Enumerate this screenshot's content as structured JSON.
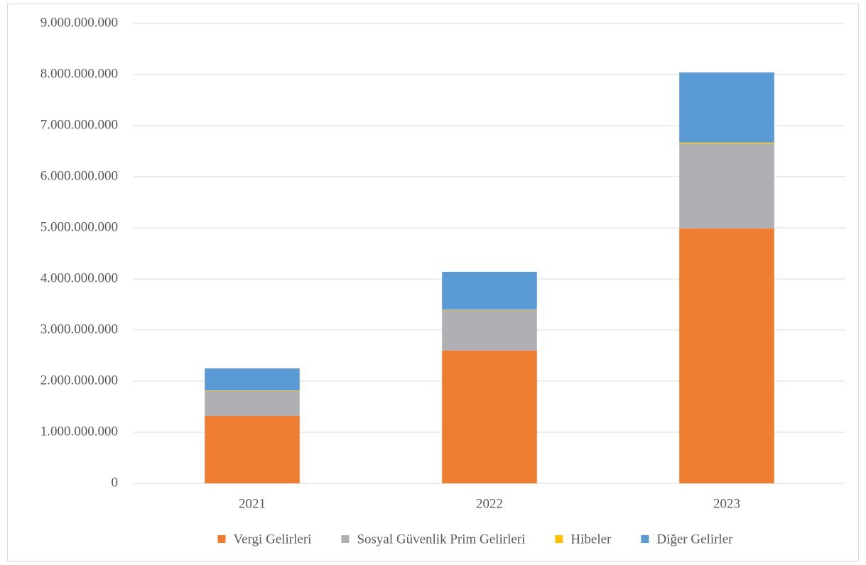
{
  "chart_data": {
    "type": "bar",
    "stacked": true,
    "categories": [
      "2021",
      "2022",
      "2023"
    ],
    "series": [
      {
        "name": "Vergi Gelirleri",
        "color": "#ed7d31",
        "values": [
          1320000000,
          2600000000,
          4990000000
        ]
      },
      {
        "name": "Sosyal Güvenlik Prim Gelirleri",
        "color": "#b0b0b4",
        "values": [
          490000000,
          790000000,
          1660000000
        ]
      },
      {
        "name": "Hibeler",
        "color": "#ffc000",
        "values": [
          10000000,
          10000000,
          20000000
        ]
      },
      {
        "name": "Diğer Gelirler",
        "color": "#5b9bd5",
        "values": [
          430000000,
          740000000,
          1370000000
        ]
      }
    ],
    "ylim": [
      0,
      9000000000
    ],
    "yticks": [
      0,
      {
        "value": 1000000000,
        "label": "1.000.000.000"
      },
      {
        "value": 2000000000,
        "label": "2.000.000.000"
      },
      {
        "value": 3000000000,
        "label": "3.000.000.000"
      },
      {
        "value": 4000000000,
        "label": "4.000.000.000"
      },
      {
        "value": 5000000000,
        "label": "5.000.000.000"
      },
      {
        "value": 6000000000,
        "label": "6.000.000.000"
      },
      {
        "value": 7000000000,
        "label": "7.000.000.000"
      },
      {
        "value": 8000000000,
        "label": "8.000.000.000"
      },
      {
        "value": 9000000000,
        "label": "9.000.000.000"
      }
    ],
    "grid": true,
    "legend": "bottom"
  }
}
